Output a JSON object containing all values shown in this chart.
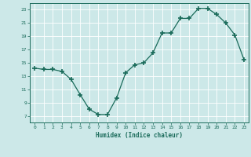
{
  "x": [
    0,
    1,
    2,
    3,
    4,
    5,
    6,
    7,
    8,
    9,
    10,
    11,
    12,
    13,
    14,
    15,
    16,
    17,
    18,
    19,
    20,
    21,
    22,
    23
  ],
  "y": [
    14.2,
    14.0,
    14.0,
    13.7,
    12.5,
    10.2,
    8.0,
    7.2,
    7.2,
    9.7,
    13.5,
    14.7,
    15.0,
    16.5,
    19.5,
    19.5,
    21.7,
    21.7,
    23.2,
    23.2,
    22.3,
    21.0,
    19.2,
    15.5
  ],
  "xlabel": "Humidex (Indice chaleur)",
  "xlim": [
    -0.5,
    23.5
  ],
  "ylim": [
    6,
    24
  ],
  "yticks": [
    7,
    9,
    11,
    13,
    15,
    17,
    19,
    21,
    23
  ],
  "xticks": [
    0,
    1,
    2,
    3,
    4,
    5,
    6,
    7,
    8,
    9,
    10,
    11,
    12,
    13,
    14,
    15,
    16,
    17,
    18,
    19,
    20,
    21,
    22,
    23
  ],
  "line_color": "#1a6b5a",
  "marker_color": "#1a6b5a",
  "bg_color": "#cce8e8",
  "grid_color": "#ffffff",
  "label_color": "#1a6b5a",
  "tick_color": "#1a6b5a",
  "spine_color": "#1a6b5a"
}
